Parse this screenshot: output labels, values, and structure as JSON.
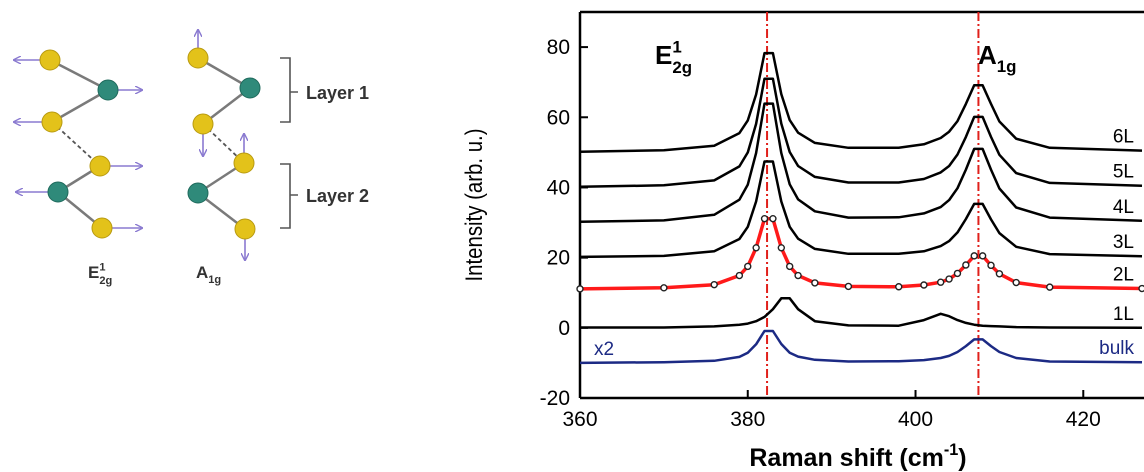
{
  "diagram": {
    "layers": [
      "Layer 1",
      "Layer 2"
    ],
    "modes": [
      {
        "base": "E",
        "sup": "1",
        "sub": "2g"
      },
      {
        "base": "A",
        "sub": "1g"
      }
    ]
  },
  "chart_data": {
    "type": "line",
    "ylabel": "Intensity (arb. u.)",
    "xlabel": {
      "base": "Raman shift (cm",
      "sup": "-1",
      "tail": ")"
    },
    "annotations": [
      {
        "base": "E",
        "sup": "1",
        "sub": "2g"
      },
      {
        "base": "A",
        "sub": "1g"
      }
    ],
    "scale_note": "x2",
    "x": [
      360,
      370,
      376,
      379,
      380,
      381,
      382,
      383,
      384,
      385,
      386,
      388,
      392,
      398,
      401,
      403,
      404,
      405,
      406,
      407,
      408,
      409,
      410,
      412,
      416,
      427
    ],
    "series": [
      {
        "name": "6L",
        "color": "#000000",
        "values": [
          50.2,
          50.6,
          51.9,
          55.5,
          59.1,
          66.5,
          78.3,
          78.3,
          66.6,
          59.2,
          55.6,
          52.7,
          51.3,
          51.3,
          52.3,
          54.1,
          55.9,
          58.9,
          63.8,
          69.1,
          69.1,
          63.8,
          58.8,
          53.9,
          51.3,
          50.5
        ]
      },
      {
        "name": "5L",
        "color": "#000000",
        "values": [
          40.2,
          40.6,
          42.0,
          46.0,
          50.0,
          58.1,
          71.0,
          71.0,
          58.2,
          50.1,
          46.1,
          43.0,
          41.4,
          41.4,
          42.4,
          44.3,
          46.1,
          49.4,
          54.4,
          60.1,
          60.1,
          54.4,
          49.3,
          44.1,
          41.3,
          40.5
        ]
      },
      {
        "name": "4L",
        "color": "#000000",
        "values": [
          30.2,
          30.6,
          32.2,
          36.5,
          40.8,
          49.8,
          63.9,
          63.9,
          49.8,
          40.9,
          36.6,
          33.2,
          31.4,
          31.5,
          32.6,
          34.4,
          36.4,
          39.8,
          45.1,
          51.0,
          51.0,
          45.1,
          39.7,
          34.3,
          31.4,
          30.5
        ]
      },
      {
        "name": "3L",
        "color": "#000000",
        "values": [
          20.2,
          20.5,
          21.8,
          25.3,
          28.8,
          36.0,
          47.4,
          47.4,
          36.0,
          28.8,
          25.4,
          22.5,
          21.1,
          21.1,
          21.8,
          23.3,
          24.7,
          27.2,
          31.0,
          35.3,
          35.3,
          30.9,
          27.0,
          23.1,
          21.0,
          20.4
        ]
      },
      {
        "name": "2L",
        "color": "#ff1a1a",
        "markers": true,
        "values": [
          11.1,
          11.4,
          12.3,
          14.9,
          17.5,
          22.8,
          31.1,
          31.1,
          22.8,
          17.5,
          14.9,
          12.8,
          11.8,
          11.7,
          12.2,
          13.0,
          13.9,
          15.5,
          17.9,
          20.5,
          20.5,
          17.8,
          15.4,
          12.9,
          11.6,
          11.2
        ]
      },
      {
        "name": "1L",
        "color": "#000000",
        "values": [
          0.1,
          0.1,
          0.4,
          0.9,
          1.2,
          1.9,
          3.1,
          5.3,
          8.4,
          8.4,
          5.3,
          1.9,
          0.7,
          0.6,
          2.2,
          4,
          3.3,
          2.2,
          1.4,
          0.9,
          0.6,
          0.5,
          0.4,
          0.2,
          0.1,
          0
        ]
      },
      {
        "name": "bulk",
        "color": "#1c2a84",
        "values": [
          -10,
          -9.8,
          -9.4,
          -8.3,
          -7.1,
          -4.7,
          -0.9,
          -0.9,
          -4.6,
          -7.1,
          -8.2,
          -9.1,
          -9.6,
          -9.5,
          -9.2,
          -8.6,
          -8.0,
          -6.9,
          -5.2,
          -3.3,
          -3.3,
          -5.2,
          -6.9,
          -8.6,
          -9.6,
          -9.8
        ]
      }
    ],
    "xlim": [
      360,
      427
    ],
    "ylim": [
      -20,
      90
    ],
    "xticks": [
      360,
      380,
      400,
      420
    ],
    "yticks": [
      -20,
      0,
      20,
      40,
      60,
      80
    ],
    "reference_lines": {
      "x": [
        382.3,
        407.5
      ],
      "color": "#e0201b"
    }
  }
}
